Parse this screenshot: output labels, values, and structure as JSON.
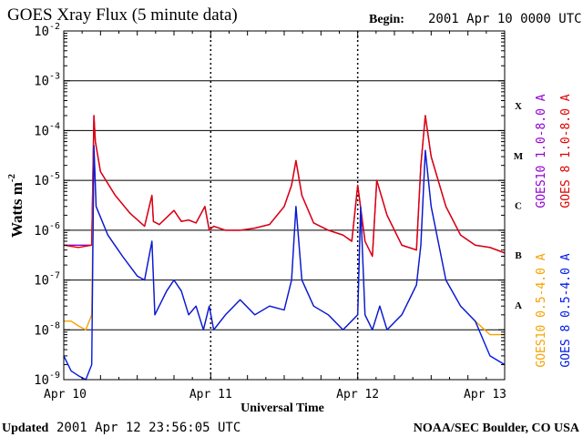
{
  "chart_data": {
    "type": "line",
    "title": "GOES Xray Flux (5 minute data)",
    "begin_label": "Begin:",
    "begin_value": "2001 Apr 10 0000 UTC",
    "xlabel": "Universal Time",
    "ylabel": "Watts m",
    "ylabel_exp": "-2",
    "yscale": "log",
    "ylim": [
      1e-09,
      0.01
    ],
    "grid": true,
    "xlim_days": [
      0,
      3
    ],
    "x_ticks": [
      {
        "day": 0,
        "label": "Apr 10"
      },
      {
        "day": 1,
        "label": "Apr 11"
      },
      {
        "day": 2,
        "label": "Apr 12"
      },
      {
        "day": 3,
        "label": "Apr 13"
      }
    ],
    "y_ticks": [
      {
        "exp": -9,
        "label_base": "10",
        "label_exp": "-9"
      },
      {
        "exp": -8,
        "label_base": "10",
        "label_exp": "-8"
      },
      {
        "exp": -7,
        "label_base": "10",
        "label_exp": "-7"
      },
      {
        "exp": -6,
        "label_base": "10",
        "label_exp": "-6"
      },
      {
        "exp": -5,
        "label_base": "10",
        "label_exp": "-5"
      },
      {
        "exp": -4,
        "label_base": "10",
        "label_exp": "-4"
      },
      {
        "exp": -3,
        "label_base": "10",
        "label_exp": "-3"
      },
      {
        "exp": -2,
        "label_base": "10",
        "label_exp": "-2"
      }
    ],
    "flare_classes": [
      {
        "label": "A",
        "exp": -8
      },
      {
        "label": "B",
        "exp": -7
      },
      {
        "label": "C",
        "exp": -6
      },
      {
        "label": "M",
        "exp": -5
      },
      {
        "label": "X",
        "exp": -4
      }
    ],
    "legend_placement": "right",
    "series": [
      {
        "name": "GOES10 1.0-8.0 A",
        "color": "#9400d3",
        "x": [
          0.0,
          0.1,
          0.19,
          0.205,
          0.215,
          0.25,
          0.35,
          0.45,
          0.55,
          0.6,
          0.61,
          0.65,
          0.75,
          0.8,
          0.85,
          0.9,
          0.96,
          0.99,
          1.02,
          1.1,
          1.2,
          1.3,
          1.4,
          1.5,
          1.55,
          1.58,
          1.62,
          1.7,
          1.8,
          1.9,
          1.96,
          2.0,
          2.05,
          2.1,
          2.13,
          2.2,
          2.3,
          2.4,
          2.43,
          2.46,
          2.5,
          2.6,
          2.7,
          2.8,
          2.9,
          3.0
        ],
        "y": [
          5e-07,
          5e-07,
          5e-07,
          0.0002,
          6e-05,
          1.5e-05,
          5e-06,
          2.2e-06,
          1.2e-06,
          5e-06,
          1.5e-06,
          1.3e-06,
          2.5e-06,
          1.5e-06,
          1.6e-06,
          1.4e-06,
          3e-06,
          1e-06,
          1.2e-06,
          1e-06,
          1e-06,
          1.1e-06,
          1.3e-06,
          3e-06,
          8e-06,
          2.5e-05,
          5e-06,
          1.4e-06,
          1e-06,
          8e-07,
          6e-07,
          8e-06,
          6e-07,
          3e-07,
          1e-05,
          2e-06,
          5e-07,
          4e-07,
          2e-05,
          0.0002,
          3e-05,
          3e-06,
          8e-07,
          5e-07,
          4.5e-07,
          3.5e-07
        ]
      },
      {
        "name": "GOES 8 1.0-8.0 A",
        "color": "#e00000",
        "x": [
          0.0,
          0.1,
          0.19,
          0.205,
          0.215,
          0.25,
          0.35,
          0.45,
          0.55,
          0.6,
          0.61,
          0.65,
          0.75,
          0.8,
          0.85,
          0.9,
          0.96,
          0.99,
          1.02,
          1.1,
          1.2,
          1.3,
          1.4,
          1.5,
          1.55,
          1.58,
          1.62,
          1.7,
          1.8,
          1.9,
          1.96,
          2.0,
          2.05,
          2.1,
          2.13,
          2.2,
          2.3,
          2.4,
          2.43,
          2.46,
          2.5,
          2.6,
          2.7,
          2.8,
          2.9,
          3.0
        ],
        "y": [
          5e-07,
          4.5e-07,
          5e-07,
          0.0002,
          6e-05,
          1.5e-05,
          5e-06,
          2.2e-06,
          1.2e-06,
          5e-06,
          1.5e-06,
          1.3e-06,
          2.5e-06,
          1.5e-06,
          1.6e-06,
          1.4e-06,
          3e-06,
          1e-06,
          1.2e-06,
          1e-06,
          1e-06,
          1.1e-06,
          1.3e-06,
          3e-06,
          8e-06,
          2.5e-05,
          5e-06,
          1.4e-06,
          1e-06,
          8e-07,
          6e-07,
          8e-06,
          6e-07,
          3e-07,
          1e-05,
          2e-06,
          5e-07,
          4e-07,
          2e-05,
          0.0002,
          3e-05,
          3e-06,
          8e-07,
          5e-07,
          4.5e-07,
          3.5e-07
        ]
      },
      {
        "name": "GOES10 0.5-4.0 A",
        "color": "#f5a300",
        "x": [
          0.0,
          0.05,
          0.1,
          0.15,
          0.19,
          0.205,
          0.22,
          0.3,
          0.4,
          0.5,
          0.55,
          0.6,
          0.62,
          0.7,
          0.75,
          0.8,
          0.85,
          0.9,
          0.95,
          0.99,
          1.02,
          1.1,
          1.2,
          1.3,
          1.4,
          1.5,
          1.55,
          1.58,
          1.62,
          1.7,
          1.8,
          1.9,
          2.0,
          2.02,
          2.05,
          2.1,
          2.15,
          2.2,
          2.3,
          2.4,
          2.43,
          2.46,
          2.5,
          2.6,
          2.7,
          2.8,
          2.9,
          3.0
        ],
        "y": [
          1.5e-08,
          1.5e-08,
          1.2e-08,
          1e-08,
          2e-08,
          5e-05,
          3e-06,
          8e-07,
          3e-07,
          1.2e-07,
          1e-07,
          6e-07,
          2e-08,
          6e-08,
          1e-07,
          6e-08,
          2e-08,
          3e-08,
          1e-08,
          3e-08,
          1e-08,
          2e-08,
          4e-08,
          2e-08,
          3e-08,
          2.5e-08,
          1e-07,
          3e-06,
          1e-07,
          3e-08,
          2e-08,
          1e-08,
          2e-08,
          3e-06,
          2e-08,
          1e-08,
          3e-08,
          1e-08,
          2e-08,
          8e-08,
          5e-07,
          4e-05,
          3e-06,
          1e-07,
          3e-08,
          1.5e-08,
          8e-09,
          8e-09
        ]
      },
      {
        "name": "GOES 8 0.5-4.0 A",
        "color": "#0018e8",
        "x": [
          0.0,
          0.05,
          0.1,
          0.15,
          0.19,
          0.205,
          0.22,
          0.3,
          0.4,
          0.5,
          0.55,
          0.6,
          0.62,
          0.7,
          0.75,
          0.8,
          0.85,
          0.9,
          0.95,
          0.99,
          1.02,
          1.1,
          1.2,
          1.3,
          1.4,
          1.5,
          1.55,
          1.58,
          1.62,
          1.7,
          1.8,
          1.9,
          2.0,
          2.02,
          2.05,
          2.1,
          2.15,
          2.2,
          2.3,
          2.4,
          2.43,
          2.46,
          2.5,
          2.6,
          2.7,
          2.8,
          2.9,
          3.0
        ],
        "y": [
          3e-09,
          1.5e-09,
          1.2e-09,
          1e-09,
          2e-09,
          5e-05,
          3e-06,
          8e-07,
          3e-07,
          1.2e-07,
          1e-07,
          6e-07,
          2e-08,
          6e-08,
          1e-07,
          6e-08,
          2e-08,
          3e-08,
          1e-08,
          3e-08,
          1e-08,
          2e-08,
          4e-08,
          2e-08,
          3e-08,
          2.5e-08,
          1e-07,
          3e-06,
          1e-07,
          3e-08,
          2e-08,
          1e-08,
          2e-08,
          3e-06,
          2e-08,
          1e-08,
          3e-08,
          1e-08,
          2e-08,
          8e-08,
          5e-07,
          4e-05,
          3e-06,
          1e-07,
          3e-08,
          1.5e-08,
          3e-09,
          2e-09
        ]
      }
    ]
  },
  "footer": {
    "updated_label": "Updated",
    "updated_value": "2001 Apr 12 23:56:05 UTC",
    "credit": "NOAA/SEC Boulder, CO USA"
  }
}
